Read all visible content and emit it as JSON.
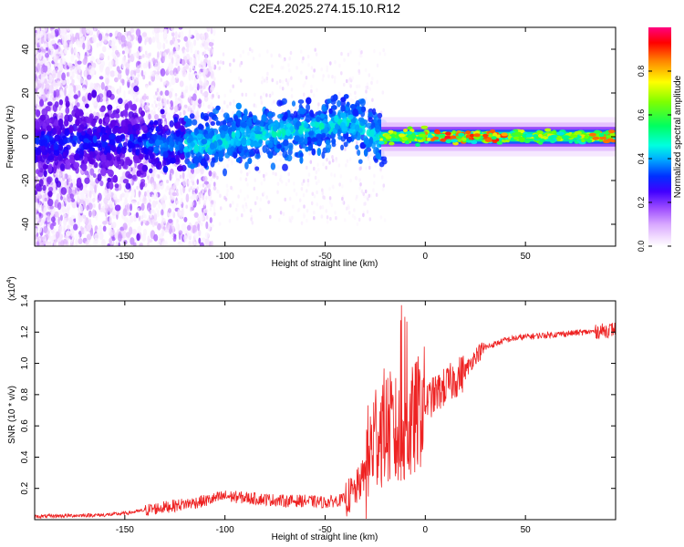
{
  "title": "C2E4.2025.274.15.10.R12",
  "chart_data": [
    {
      "type": "heatmap",
      "title": "C2E4.2025.274.15.10.R12",
      "xlabel": "Height of straight line (km)",
      "ylabel": "Frequency (Hz)",
      "xlim": [
        -195,
        95
      ],
      "ylim": [
        -50,
        50
      ],
      "xticks": [
        -150,
        -100,
        -50,
        0,
        50
      ],
      "yticks": [
        -40,
        -20,
        0,
        20,
        40
      ],
      "ridge_frequency": {
        "x": [
          -195,
          -150,
          -130,
          -110,
          -90,
          -70,
          -50,
          -40,
          -30,
          -25,
          -20,
          -10,
          0,
          20,
          50,
          80,
          95
        ],
        "y": [
          -3,
          -2,
          -4,
          -3,
          0,
          2,
          5,
          7,
          4,
          0,
          0,
          0,
          0,
          0,
          0,
          0,
          0
        ]
      },
      "colorbar": {
        "label": "Normalized spectral amplitude",
        "range": [
          0,
          1
        ],
        "ticks": [
          0.0,
          0.2,
          0.4,
          0.6,
          0.8
        ]
      },
      "colormap": [
        "#ffffff",
        "#f0d8ff",
        "#d8a8ff",
        "#a050ff",
        "#5a00e6",
        "#1200ff",
        "#0070ff",
        "#00e0ff",
        "#00ff80",
        "#60ff00",
        "#e0ff00",
        "#ffb000",
        "#ff2000",
        "#ff0080"
      ]
    },
    {
      "type": "line",
      "xlabel": "Height of straight line (km)",
      "ylabel": "SNR (10 * v/v)",
      "yscale_label": "(x10",
      "yscale_exp": "4",
      "yscale_close": ")",
      "xlim": [
        -195,
        95
      ],
      "ylim": [
        0,
        1.4
      ],
      "xticks": [
        -150,
        -100,
        -50,
        0,
        50
      ],
      "yticks": [
        0.2,
        0.4,
        0.6,
        0.8,
        1.0,
        1.2,
        1.4
      ],
      "series": [
        {
          "name": "SNR",
          "color": "#ee2222",
          "x": [
            -195,
            -180,
            -160,
            -150,
            -140,
            -130,
            -120,
            -110,
            -100,
            -90,
            -80,
            -70,
            -60,
            -50,
            -40,
            -35,
            -30,
            -25,
            -20,
            -15,
            -12,
            -10,
            -5,
            0,
            5,
            10,
            15,
            20,
            25,
            30,
            40,
            50,
            60,
            70,
            80,
            90,
            95
          ],
          "y": [
            0.02,
            0.025,
            0.03,
            0.04,
            0.06,
            0.08,
            0.1,
            0.12,
            0.15,
            0.14,
            0.13,
            0.12,
            0.12,
            0.11,
            0.13,
            0.18,
            0.3,
            0.55,
            0.6,
            0.55,
            0.5,
            0.5,
            0.65,
            0.75,
            0.8,
            0.85,
            0.9,
            0.95,
            1.05,
            1.1,
            1.15,
            1.17,
            1.18,
            1.19,
            1.2,
            1.21,
            1.22
          ]
        }
      ]
    }
  ]
}
